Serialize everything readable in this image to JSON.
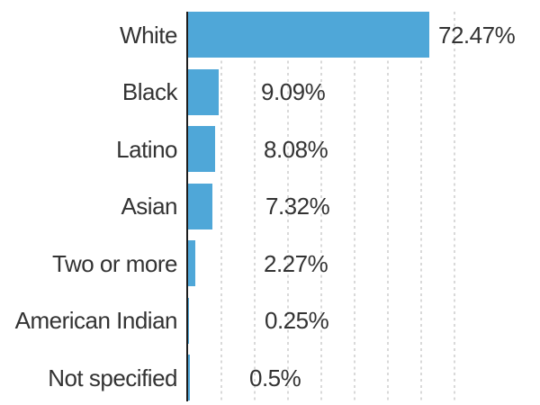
{
  "chart_data": {
    "type": "bar",
    "orientation": "horizontal",
    "title": "",
    "xlabel": "",
    "ylabel": "",
    "categories": [
      "White",
      "Black",
      "Latino",
      "Asian",
      "Two or more",
      "American Indian",
      "Not specified"
    ],
    "values": [
      72.47,
      9.09,
      8.08,
      7.32,
      2.27,
      0.25,
      0.5
    ],
    "value_labels": [
      "72.47%",
      "9.09%",
      "8.08%",
      "7.32%",
      "2.27%",
      "0.25%",
      "0.5%"
    ],
    "xlim": [
      0,
      105
    ],
    "gridlines_percent": [
      10,
      20,
      30,
      40,
      50,
      60,
      70,
      80
    ],
    "grid_style": "dotted-vertical",
    "legend": "none",
    "colors": {
      "bar": "#4FA7D8",
      "axis": "#1d1d1d",
      "gridline": "#d9d9d9",
      "text": "#333333",
      "background": "#ffffff"
    }
  }
}
